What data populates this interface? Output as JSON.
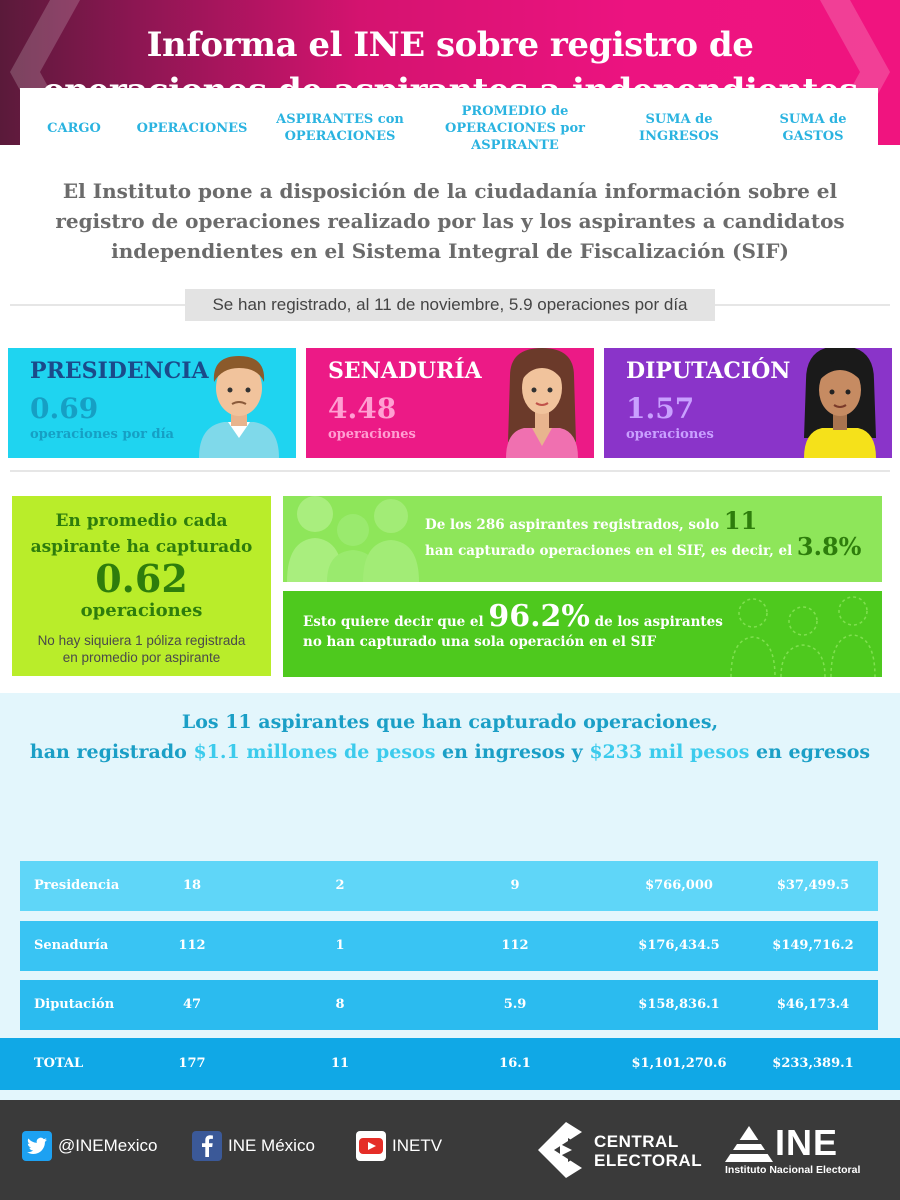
{
  "header": {
    "title_line1": "Informa el INE sobre registro de",
    "title_line2": "operaciones de aspirantes a independientes"
  },
  "intro": {
    "line1": "El Instituto pone a disposición de la ciudadanía información sobre el",
    "line2": "registro de operaciones realizado por las y los aspirantes a candidatos",
    "line3": "independientes en el Sistema Integral de Fiscalización (SIF)"
  },
  "ribbon": "Se han registrado, al 11 de noviembre, 5.9 operaciones por día",
  "cards": [
    {
      "name": "PRESIDENCIA",
      "value": "0.69",
      "unit": "operaciones por día",
      "color": "#1fd4f0"
    },
    {
      "name": "SENADURÍA",
      "value": "4.48",
      "unit": "operaciones",
      "color": "#ec1a86"
    },
    {
      "name": "DIPUTACIÓN",
      "value": "1.57",
      "unit": "operaciones",
      "color": "#8a34c9"
    }
  ],
  "average": {
    "line1": "En promedio cada",
    "line2": "aspirante ha capturado",
    "value": "0.62",
    "unit": "operaciones",
    "note1": "No hay siquiera 1 póliza registrada",
    "note2": "en promedio por aspirante"
  },
  "box11": {
    "line1_pre": "De los 286 aspirantes registrados, solo ",
    "line1_num": "11",
    "line2_pre": "han capturado operaciones en el SIF, es decir, el ",
    "line2_num": "3.8%"
  },
  "box96": {
    "pre": "Esto quiere decir que el ",
    "num": "96.2%",
    "post": " de los aspirantes",
    "line2": "no han capturado una sola operación en el SIF"
  },
  "table_section": {
    "title_line1": "Los 11 aspirantes que han capturado operaciones,",
    "title_a": "han registrado ",
    "title_b": "$1.1 millones de pesos",
    "title_c": " en ingresos y ",
    "title_d": "$233 mil pesos",
    "title_e": " en egresos"
  },
  "table": {
    "headers": [
      "CARGO",
      "OPERACIONES",
      "ASPIRANTES con OPERACIONES",
      "PROMEDIO de OPERACIONES por ASPIRANTE",
      "SUMA de INGRESOS",
      "SUMA de GASTOS"
    ],
    "rows": [
      [
        "Presidencia",
        "18",
        "2",
        "9",
        "$766,000",
        "$37,499.5"
      ],
      [
        "Senaduría",
        "112",
        "1",
        "112",
        "$176,434.5",
        "$149,716.2"
      ],
      [
        "Diputación",
        "47",
        "8",
        "5.9",
        "$158,836.1",
        "$46,173.4"
      ]
    ],
    "total": [
      "TOTAL",
      "177",
      "11",
      "16.1",
      "$1,101,270.6",
      "$233,389.1"
    ]
  },
  "footer": {
    "twitter": "@INEMexico",
    "facebook": "INE México",
    "youtube": "INETV",
    "central_line1": "CENTRAL",
    "central_line2": "ELECTORAL",
    "ine_word": "INE",
    "ine_sub": "Instituto Nacional Electoral"
  }
}
